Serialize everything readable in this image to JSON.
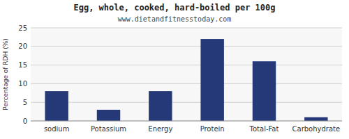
{
  "chart_data": {
    "type": "bar",
    "title": "Egg, whole, cooked, hard-boiled per 100g",
    "subtitle": "www.dietandfitnesstoday.com",
    "categories": [
      "sodium",
      "Potassium",
      "Energy",
      "Protein",
      "Total-Fat",
      "Carbohydrate"
    ],
    "values": [
      8,
      3,
      8,
      22,
      16,
      1
    ],
    "color": "#253878",
    "ylabel": "Percentage of RDH (%)",
    "ylim": [
      0,
      25
    ],
    "yticks": [
      0,
      5,
      10,
      15,
      20,
      25
    ],
    "grid": true
  }
}
